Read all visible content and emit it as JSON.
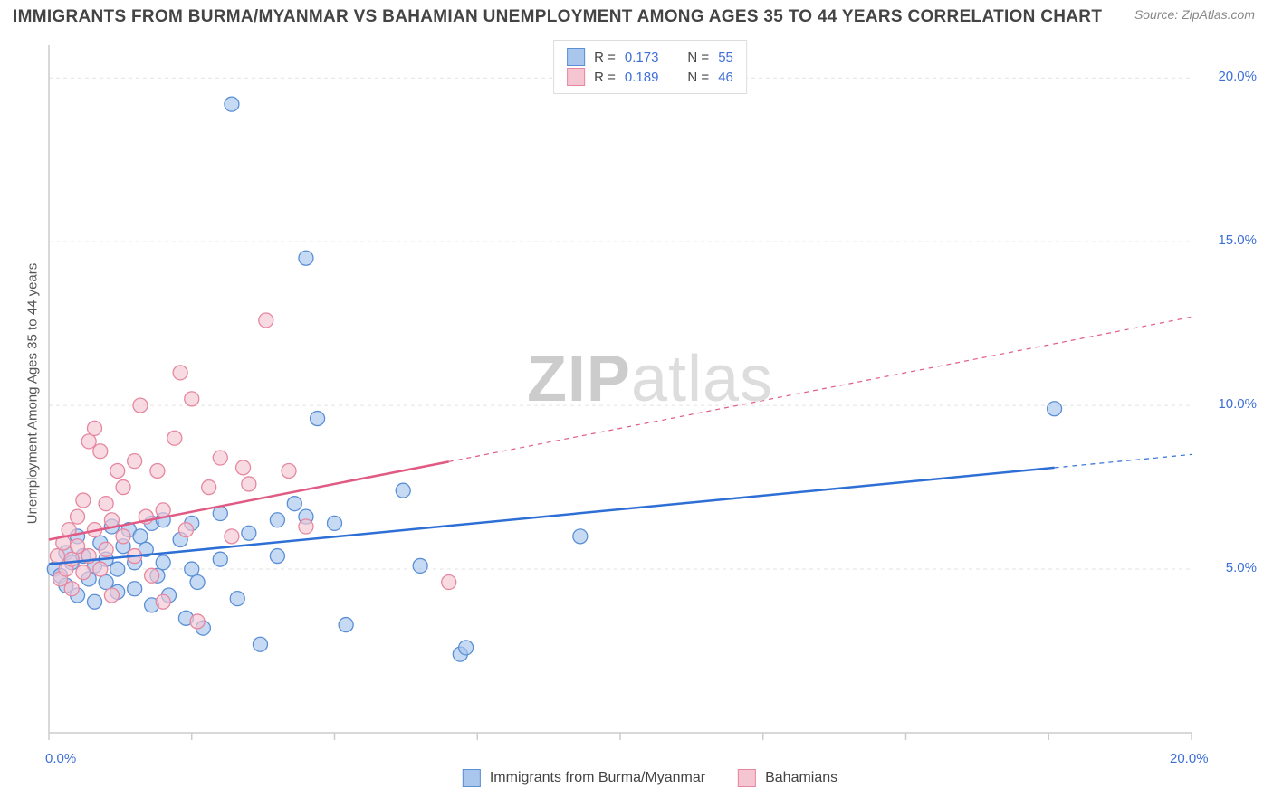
{
  "title": "IMMIGRANTS FROM BURMA/MYANMAR VS BAHAMIAN UNEMPLOYMENT AMONG AGES 35 TO 44 YEARS CORRELATION CHART",
  "source": "Source: ZipAtlas.com",
  "ylabel": "Unemployment Among Ages 35 to 44 years",
  "watermark_bold": "ZIP",
  "watermark_light": "atlas",
  "colors": {
    "blue_marker_fill": "#a9c6ed",
    "blue_marker_stroke": "#5a8fd6",
    "pink_marker_fill": "#f5c6d2",
    "pink_marker_stroke": "#e6879f",
    "blue_line": "#2e6fd6",
    "pink_line": "#e05a84",
    "grid": "#e3e3e3",
    "axis": "#cccccc",
    "tick_text": "#3d6fd6",
    "bg": "#ffffff"
  },
  "chart": {
    "type": "scatter-with-regression",
    "xlim": [
      0,
      20
    ],
    "ylim": [
      0,
      21
    ],
    "xticks": [
      0,
      20
    ],
    "xtick_labels": [
      "0.0%",
      "20.0%"
    ],
    "yticks": [
      5,
      10,
      15,
      20
    ],
    "ytick_labels": [
      "5.0%",
      "10.0%",
      "15.0%",
      "20.0%"
    ],
    "marker_radius": 8,
    "marker_opacity": 0.65,
    "line_width": 2.5,
    "grid_dash": "4,4"
  },
  "legend_top": [
    {
      "swatch_fill": "#a9c6ed",
      "swatch_stroke": "#5a8fd6",
      "r_label": "R =",
      "r_value": "0.173",
      "n_label": "N =",
      "n_value": "55"
    },
    {
      "swatch_fill": "#f5c6d2",
      "swatch_stroke": "#e6879f",
      "r_label": "R =",
      "r_value": "0.189",
      "n_label": "N =",
      "n_value": "46"
    }
  ],
  "legend_bottom": [
    {
      "swatch_fill": "#a9c6ed",
      "swatch_stroke": "#5a8fd6",
      "label": "Immigrants from Burma/Myanmar"
    },
    {
      "swatch_fill": "#f5c6d2",
      "swatch_stroke": "#e6879f",
      "label": "Bahamians"
    }
  ],
  "series": [
    {
      "name": "burma",
      "color_fill": "#a9c6ed",
      "color_stroke": "#5a8fd6",
      "points": [
        [
          0.1,
          5.0
        ],
        [
          0.2,
          4.8
        ],
        [
          0.3,
          5.5
        ],
        [
          0.3,
          4.5
        ],
        [
          0.4,
          5.2
        ],
        [
          0.5,
          4.2
        ],
        [
          0.5,
          6.0
        ],
        [
          0.6,
          5.4
        ],
        [
          0.7,
          4.7
        ],
        [
          0.8,
          5.1
        ],
        [
          0.8,
          4.0
        ],
        [
          0.9,
          5.8
        ],
        [
          1.0,
          5.3
        ],
        [
          1.0,
          4.6
        ],
        [
          1.1,
          6.3
        ],
        [
          1.2,
          5.0
        ],
        [
          1.2,
          4.3
        ],
        [
          1.3,
          5.7
        ],
        [
          1.4,
          6.2
        ],
        [
          1.5,
          5.2
        ],
        [
          1.5,
          4.4
        ],
        [
          1.6,
          6.0
        ],
        [
          1.7,
          5.6
        ],
        [
          1.8,
          3.9
        ],
        [
          1.8,
          6.4
        ],
        [
          1.9,
          4.8
        ],
        [
          2.0,
          6.5
        ],
        [
          2.0,
          5.2
        ],
        [
          2.1,
          4.2
        ],
        [
          2.3,
          5.9
        ],
        [
          2.4,
          3.5
        ],
        [
          2.5,
          5.0
        ],
        [
          2.5,
          6.4
        ],
        [
          2.6,
          4.6
        ],
        [
          2.7,
          3.2
        ],
        [
          3.0,
          6.7
        ],
        [
          3.0,
          5.3
        ],
        [
          3.2,
          19.2
        ],
        [
          3.3,
          4.1
        ],
        [
          3.5,
          6.1
        ],
        [
          3.7,
          2.7
        ],
        [
          4.0,
          6.5
        ],
        [
          4.0,
          5.4
        ],
        [
          4.3,
          7.0
        ],
        [
          4.5,
          6.6
        ],
        [
          4.5,
          14.5
        ],
        [
          4.7,
          9.6
        ],
        [
          5.0,
          6.4
        ],
        [
          5.2,
          3.3
        ],
        [
          6.2,
          7.4
        ],
        [
          6.5,
          5.1
        ],
        [
          7.2,
          2.4
        ],
        [
          7.3,
          2.6
        ],
        [
          9.3,
          6.0
        ],
        [
          17.6,
          9.9
        ]
      ],
      "trend": {
        "x1": 0,
        "y1": 5.15,
        "x2": 20,
        "y2": 8.5,
        "solid_until_x": 17.6
      }
    },
    {
      "name": "bahamians",
      "color_fill": "#f5c6d2",
      "color_stroke": "#e6879f",
      "points": [
        [
          0.15,
          5.4
        ],
        [
          0.2,
          4.7
        ],
        [
          0.25,
          5.8
        ],
        [
          0.3,
          5.0
        ],
        [
          0.35,
          6.2
        ],
        [
          0.4,
          5.3
        ],
        [
          0.4,
          4.4
        ],
        [
          0.5,
          6.6
        ],
        [
          0.5,
          5.7
        ],
        [
          0.6,
          4.9
        ],
        [
          0.6,
          7.1
        ],
        [
          0.7,
          5.4
        ],
        [
          0.7,
          8.9
        ],
        [
          0.8,
          6.2
        ],
        [
          0.8,
          9.3
        ],
        [
          0.9,
          5.0
        ],
        [
          0.9,
          8.6
        ],
        [
          1.0,
          7.0
        ],
        [
          1.0,
          5.6
        ],
        [
          1.1,
          6.5
        ],
        [
          1.1,
          4.2
        ],
        [
          1.2,
          8.0
        ],
        [
          1.3,
          6.0
        ],
        [
          1.3,
          7.5
        ],
        [
          1.5,
          8.3
        ],
        [
          1.5,
          5.4
        ],
        [
          1.6,
          10.0
        ],
        [
          1.7,
          6.6
        ],
        [
          1.8,
          4.8
        ],
        [
          1.9,
          8.0
        ],
        [
          2.0,
          6.8
        ],
        [
          2.0,
          4.0
        ],
        [
          2.2,
          9.0
        ],
        [
          2.3,
          11.0
        ],
        [
          2.4,
          6.2
        ],
        [
          2.5,
          10.2
        ],
        [
          2.6,
          3.4
        ],
        [
          2.8,
          7.5
        ],
        [
          3.0,
          8.4
        ],
        [
          3.2,
          6.0
        ],
        [
          3.4,
          8.1
        ],
        [
          3.5,
          7.6
        ],
        [
          3.8,
          12.6
        ],
        [
          4.2,
          8.0
        ],
        [
          4.5,
          6.3
        ],
        [
          7.0,
          4.6
        ]
      ],
      "trend": {
        "x1": 0,
        "y1": 5.9,
        "x2": 20,
        "y2": 12.7,
        "solid_until_x": 7.0
      }
    }
  ]
}
